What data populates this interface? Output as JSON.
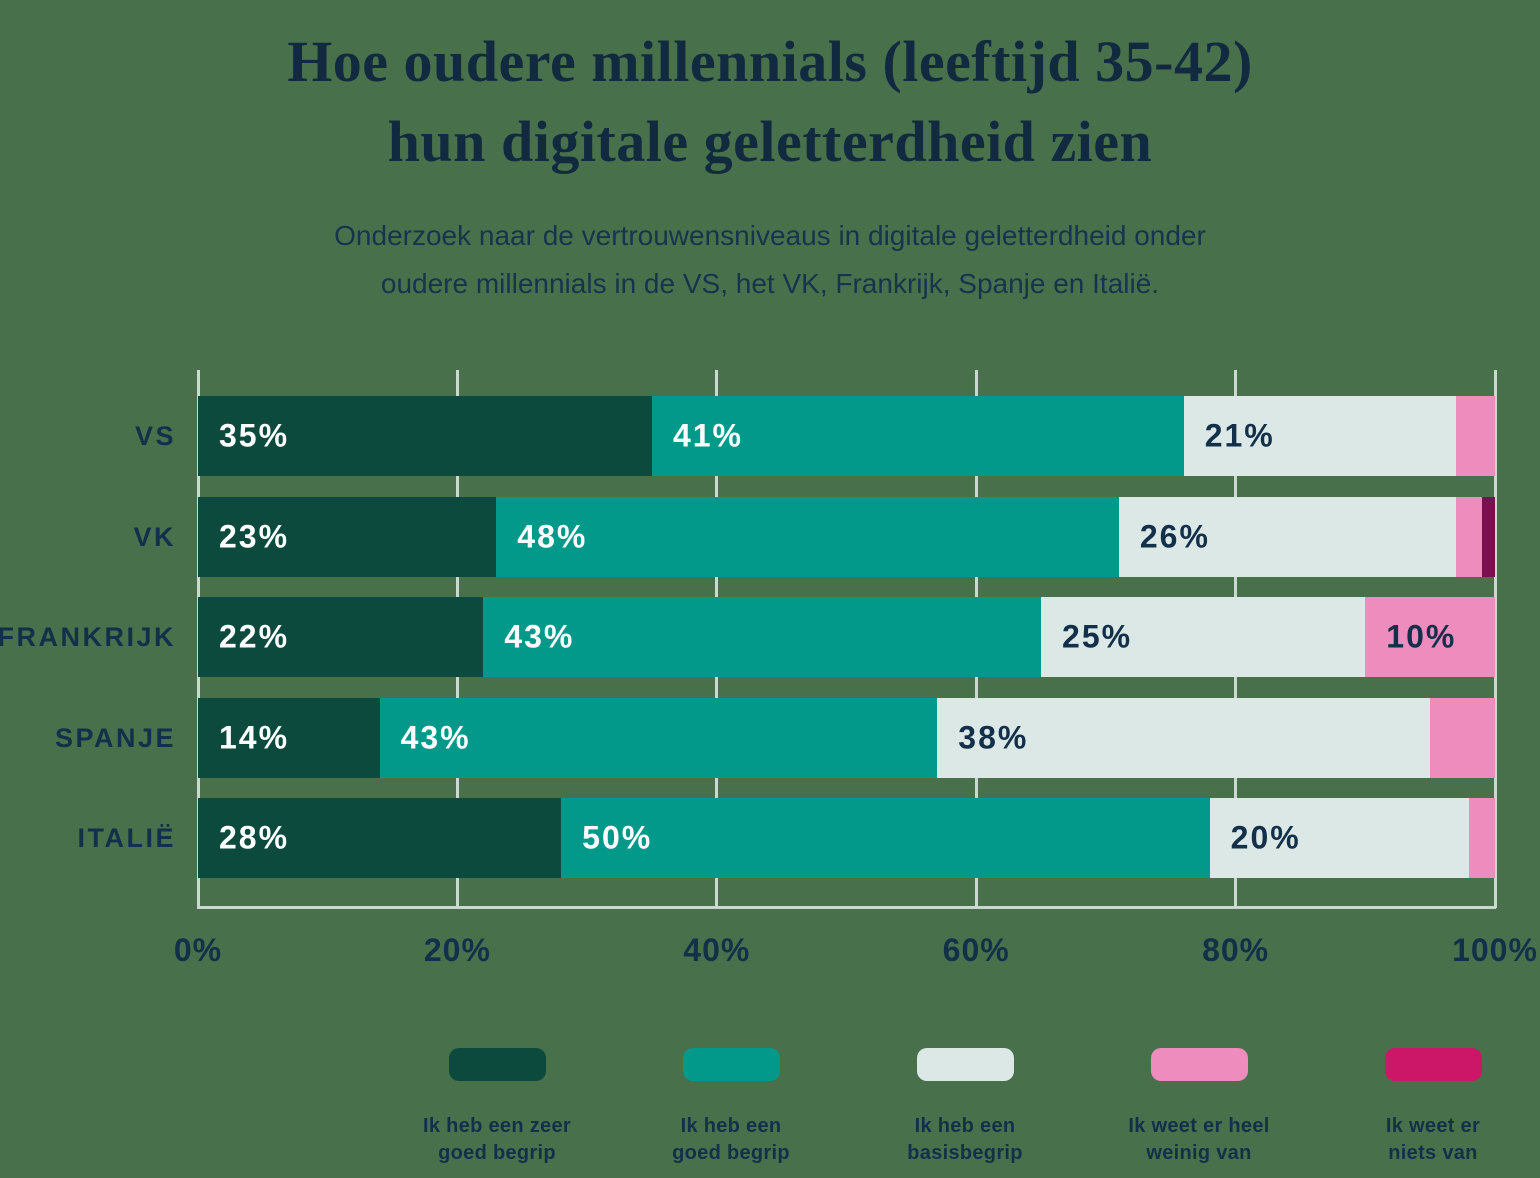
{
  "background_color": "#48714B",
  "title": {
    "line1": "Hoe oudere millennials (leeftijd 35-42)",
    "line2": "hun digitale geletterdheid zien"
  },
  "subtitle": {
    "line1": "Onderzoek naar de vertrouwensniveaus in digitale geletterdheid onder",
    "line2": "oudere millennials in de VS, het VK, Frankrijk, Spanje en Italië."
  },
  "chart_data": {
    "type": "bar",
    "orientation": "horizontal-stacked",
    "title": "Hoe oudere millennials (leeftijd 35-42) hun digitale geletterdheid zien",
    "categories": [
      "VS",
      "VK",
      "FRANKRIJK",
      "SPANJE",
      "ITALIË"
    ],
    "series": [
      {
        "name": "Ik heb een zeer goed begrip",
        "color": "#0C4A3E",
        "label_color": "#FFFFFF",
        "values": [
          35,
          23,
          22,
          14,
          28
        ]
      },
      {
        "name": "Ik heb een goed begrip",
        "color": "#02998A",
        "label_color": "#FFFFFF",
        "values": [
          41,
          48,
          43,
          43,
          50
        ]
      },
      {
        "name": "Ik heb een basisbegrip",
        "color": "#DCE8E6",
        "label_color": "#13304B",
        "values": [
          21,
          26,
          25,
          38,
          20
        ]
      },
      {
        "name": "Ik weet er heel weinig van",
        "color": "#EE8CBE",
        "label_color": "#13304B",
        "values": [
          3,
          2,
          10,
          5,
          2
        ]
      },
      {
        "name": "Ik weet er niets van",
        "color": "#7A1050",
        "label_color": "#FFFFFF",
        "values": [
          0,
          1,
          0,
          0,
          0
        ]
      }
    ],
    "x_ticks": [
      "0%",
      "20%",
      "40%",
      "60%",
      "80%",
      "100%"
    ],
    "xlim": [
      0,
      100
    ],
    "grid": "vertical",
    "gridline_color": "#CBD8D2",
    "data_label_format": "{value}%",
    "data_label_min_value": 10,
    "legend_position": "bottom"
  },
  "legend": {
    "items": [
      {
        "lines": [
          "Ik heb een zeer",
          "goed begrip"
        ],
        "color": "#0C4A3E"
      },
      {
        "lines": [
          "Ik heb een",
          "goed begrip"
        ],
        "color": "#02998A"
      },
      {
        "lines": [
          "Ik heb een",
          "basisbegrip"
        ],
        "color": "#DCE8E6"
      },
      {
        "lines": [
          "Ik weet er heel",
          "weinig van"
        ],
        "color": "#EE8CBE"
      },
      {
        "lines": [
          "Ik weet er",
          "niets van"
        ],
        "color": "#CC1769"
      }
    ]
  },
  "colors": {
    "text_navy": "#13304B",
    "title_navy": "#122A40"
  }
}
